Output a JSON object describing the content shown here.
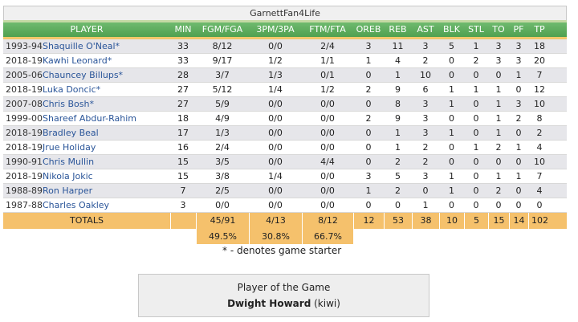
{
  "title": "GarnettFan4Life",
  "headers": {
    "player": "PLAYER",
    "min": "MIN",
    "fg": "FGM/FGA",
    "three": "3PM/3PA",
    "ft": "FTM/FTA",
    "oreb": "OREB",
    "reb": "REB",
    "ast": "AST",
    "blk": "BLK",
    "stl": "STL",
    "to": "TO",
    "pf": "PF",
    "tp": "TP"
  },
  "rows": [
    {
      "season": "1993-94",
      "name": "Shaquille O'Neal*",
      "min": "33",
      "fg": "8/12",
      "three": "0/0",
      "ft": "2/4",
      "oreb": "3",
      "reb": "11",
      "ast": "3",
      "blk": "5",
      "stl": "1",
      "to": "3",
      "pf": "3",
      "tp": "18"
    },
    {
      "season": "2018-19",
      "name": "Kawhi Leonard*",
      "min": "33",
      "fg": "9/17",
      "three": "1/2",
      "ft": "1/1",
      "oreb": "1",
      "reb": "4",
      "ast": "2",
      "blk": "0",
      "stl": "2",
      "to": "3",
      "pf": "3",
      "tp": "20"
    },
    {
      "season": "2005-06",
      "name": "Chauncey Billups*",
      "min": "28",
      "fg": "3/7",
      "three": "1/3",
      "ft": "0/1",
      "oreb": "0",
      "reb": "1",
      "ast": "10",
      "blk": "0",
      "stl": "0",
      "to": "0",
      "pf": "1",
      "tp": "7"
    },
    {
      "season": "2018-19",
      "name": "Luka Doncic*",
      "min": "27",
      "fg": "5/12",
      "three": "1/4",
      "ft": "1/2",
      "oreb": "2",
      "reb": "9",
      "ast": "6",
      "blk": "1",
      "stl": "1",
      "to": "1",
      "pf": "0",
      "tp": "12"
    },
    {
      "season": "2007-08",
      "name": "Chris Bosh*",
      "min": "27",
      "fg": "5/9",
      "three": "0/0",
      "ft": "0/0",
      "oreb": "0",
      "reb": "8",
      "ast": "3",
      "blk": "1",
      "stl": "0",
      "to": "1",
      "pf": "3",
      "tp": "10"
    },
    {
      "season": "1999-00",
      "name": "Shareef Abdur-Rahim",
      "min": "18",
      "fg": "4/9",
      "three": "0/0",
      "ft": "0/0",
      "oreb": "2",
      "reb": "9",
      "ast": "3",
      "blk": "0",
      "stl": "0",
      "to": "1",
      "pf": "2",
      "tp": "8"
    },
    {
      "season": "2018-19",
      "name": "Bradley Beal",
      "min": "17",
      "fg": "1/3",
      "three": "0/0",
      "ft": "0/0",
      "oreb": "0",
      "reb": "1",
      "ast": "3",
      "blk": "1",
      "stl": "0",
      "to": "1",
      "pf": "0",
      "tp": "2"
    },
    {
      "season": "2018-19",
      "name": "Jrue Holiday",
      "min": "16",
      "fg": "2/4",
      "three": "0/0",
      "ft": "0/0",
      "oreb": "0",
      "reb": "1",
      "ast": "2",
      "blk": "0",
      "stl": "1",
      "to": "2",
      "pf": "1",
      "tp": "4"
    },
    {
      "season": "1990-91",
      "name": "Chris Mullin",
      "min": "15",
      "fg": "3/5",
      "three": "0/0",
      "ft": "4/4",
      "oreb": "0",
      "reb": "2",
      "ast": "2",
      "blk": "0",
      "stl": "0",
      "to": "0",
      "pf": "0",
      "tp": "10"
    },
    {
      "season": "2018-19",
      "name": "Nikola Jokic",
      "min": "15",
      "fg": "3/8",
      "three": "1/4",
      "ft": "0/0",
      "oreb": "3",
      "reb": "5",
      "ast": "3",
      "blk": "1",
      "stl": "0",
      "to": "1",
      "pf": "1",
      "tp": "7"
    },
    {
      "season": "1988-89",
      "name": "Ron Harper",
      "min": "7",
      "fg": "2/5",
      "three": "0/0",
      "ft": "0/0",
      "oreb": "1",
      "reb": "2",
      "ast": "0",
      "blk": "1",
      "stl": "0",
      "to": "2",
      "pf": "0",
      "tp": "4"
    },
    {
      "season": "1987-88",
      "name": "Charles Oakley",
      "min": "3",
      "fg": "0/0",
      "three": "0/0",
      "ft": "0/0",
      "oreb": "0",
      "reb": "0",
      "ast": "1",
      "blk": "0",
      "stl": "0",
      "to": "0",
      "pf": "0",
      "tp": "0"
    }
  ],
  "totals": {
    "label": "TOTALS",
    "min": "",
    "fg": "45/91",
    "three": "4/13",
    "ft": "8/12",
    "oreb": "12",
    "reb": "53",
    "ast": "38",
    "blk": "10",
    "stl": "5",
    "to": "15",
    "pf": "14",
    "tp": "102"
  },
  "percentages": {
    "fg": "49.5%",
    "three": "30.8%",
    "ft": "66.7%"
  },
  "starter_note": "* - denotes game starter",
  "player_of_game": {
    "label": "Player of the Game",
    "name": "Dwight Howard",
    "user": "(kiwi)"
  }
}
